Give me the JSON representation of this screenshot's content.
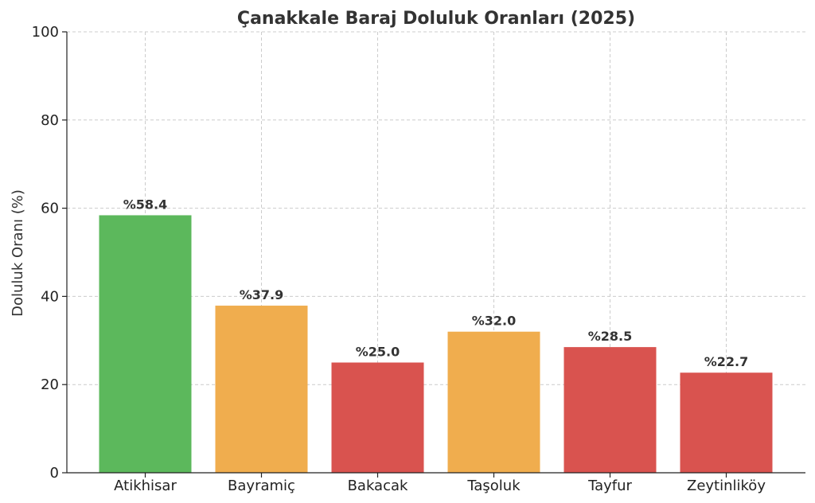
{
  "chart_data": {
    "type": "bar",
    "title": "Çanakkale Baraj Doluluk Oranları (2025)",
    "xlabel": "",
    "ylabel": "Doluluk Oranı (%)",
    "ylim": [
      0,
      100
    ],
    "yticks": [
      0,
      20,
      40,
      60,
      80,
      100
    ],
    "categories": [
      "Atikhisar",
      "Bayramiç",
      "Bakacak",
      "Taşoluk",
      "Tayfur",
      "Zeytinliköy"
    ],
    "values": [
      58.4,
      37.9,
      25.0,
      32.0,
      28.5,
      22.7
    ],
    "data_labels": [
      "%58.4",
      "%37.9",
      "%25.0",
      "%32.0",
      "%28.5",
      "%22.7"
    ],
    "bar_colors": [
      "#5cb85c",
      "#f0ad4e",
      "#d9534f",
      "#f0ad4e",
      "#d9534f",
      "#d9534f"
    ],
    "grid": true,
    "legend": "none"
  }
}
